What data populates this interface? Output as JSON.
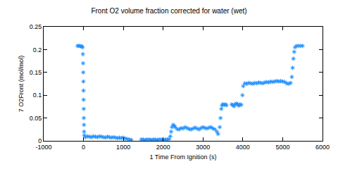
{
  "chart_data": {
    "type": "scatter",
    "title": "Front O2 volume fraction corrected for water (wet)",
    "x_label": "1 Time From Ignition (s)",
    "y_label": "7 O2Front (mol/mol)",
    "xlim": [
      -1000,
      6000
    ],
    "xticks": [
      -1000,
      0,
      1000,
      2000,
      3000,
      4000,
      5000,
      6000
    ],
    "ylim": [
      0,
      0.25
    ],
    "yticks": [
      0,
      0.05,
      0.1,
      0.15,
      0.2,
      0.25
    ],
    "grid": false,
    "marker": "asterisk",
    "color": "#1e90ff",
    "x": [
      -150,
      -120,
      -90,
      -60,
      -40,
      -25,
      -15,
      -10,
      -6,
      -3,
      0,
      3,
      6,
      9,
      12,
      15,
      20,
      50,
      100,
      150,
      200,
      250,
      300,
      350,
      400,
      450,
      500,
      550,
      600,
      650,
      700,
      750,
      800,
      850,
      900,
      950,
      1000,
      1050,
      1100,
      1150,
      1200,
      1450,
      1500,
      1550,
      1600,
      1650,
      1700,
      1750,
      1800,
      1850,
      1900,
      1950,
      2000,
      2050,
      2100,
      2150,
      2180,
      2200,
      2220,
      2250,
      2280,
      2300,
      2350,
      2400,
      2450,
      2500,
      2550,
      2600,
      2650,
      2700,
      2750,
      2800,
      2850,
      2900,
      2950,
      3000,
      3050,
      3100,
      3150,
      3200,
      3250,
      3300,
      3350,
      3380,
      3420,
      3440,
      3460,
      3480,
      3500,
      3530,
      3560,
      3590,
      3720,
      3750,
      3780,
      3810,
      3840,
      3870,
      3900,
      3930,
      3960,
      3990,
      4010,
      4050,
      4100,
      4150,
      4200,
      4250,
      4300,
      4350,
      4400,
      4450,
      4500,
      4550,
      4600,
      4650,
      4700,
      4750,
      4800,
      4850,
      4900,
      4950,
      5000,
      5050,
      5100,
      5150,
      5200,
      5230,
      5250,
      5270,
      5290,
      5310,
      5350,
      5400,
      5450,
      5500
    ],
    "values": [
      0.208,
      0.208,
      0.208,
      0.207,
      0.207,
      0.205,
      0.19,
      0.17,
      0.15,
      0.13,
      0.11,
      0.09,
      0.07,
      0.05,
      0.035,
      0.02,
      0.012,
      0.008,
      0.01,
      0.009,
      0.008,
      0.01,
      0.009,
      0.008,
      0.01,
      0.009,
      0.008,
      0.007,
      0.009,
      0.008,
      0.007,
      0.008,
      0.007,
      0.006,
      0.007,
      0.006,
      0.007,
      0.005,
      0.004,
      0.003,
      0.002,
      0.003,
      0.003,
      0.002,
      0.003,
      0.003,
      0.002,
      0.003,
      0.003,
      0.002,
      0.003,
      0.003,
      0.002,
      0.003,
      0.003,
      0.004,
      0.01,
      0.02,
      0.03,
      0.035,
      0.033,
      0.03,
      0.026,
      0.025,
      0.028,
      0.027,
      0.03,
      0.028,
      0.026,
      0.025,
      0.027,
      0.029,
      0.027,
      0.025,
      0.028,
      0.03,
      0.028,
      0.027,
      0.029,
      0.03,
      0.027,
      0.025,
      0.02,
      0.015,
      0.03,
      0.05,
      0.07,
      0.078,
      0.08,
      0.079,
      0.08,
      0.078,
      0.08,
      0.078,
      0.076,
      0.08,
      0.082,
      0.08,
      0.077,
      0.08,
      0.079,
      0.1,
      0.12,
      0.126,
      0.125,
      0.127,
      0.126,
      0.125,
      0.127,
      0.126,
      0.128,
      0.127,
      0.126,
      0.128,
      0.129,
      0.128,
      0.13,
      0.129,
      0.13,
      0.131,
      0.13,
      0.131,
      0.13,
      0.129,
      0.126,
      0.125,
      0.127,
      0.14,
      0.16,
      0.18,
      0.195,
      0.205,
      0.208,
      0.208,
      0.208,
      0.208
    ]
  }
}
